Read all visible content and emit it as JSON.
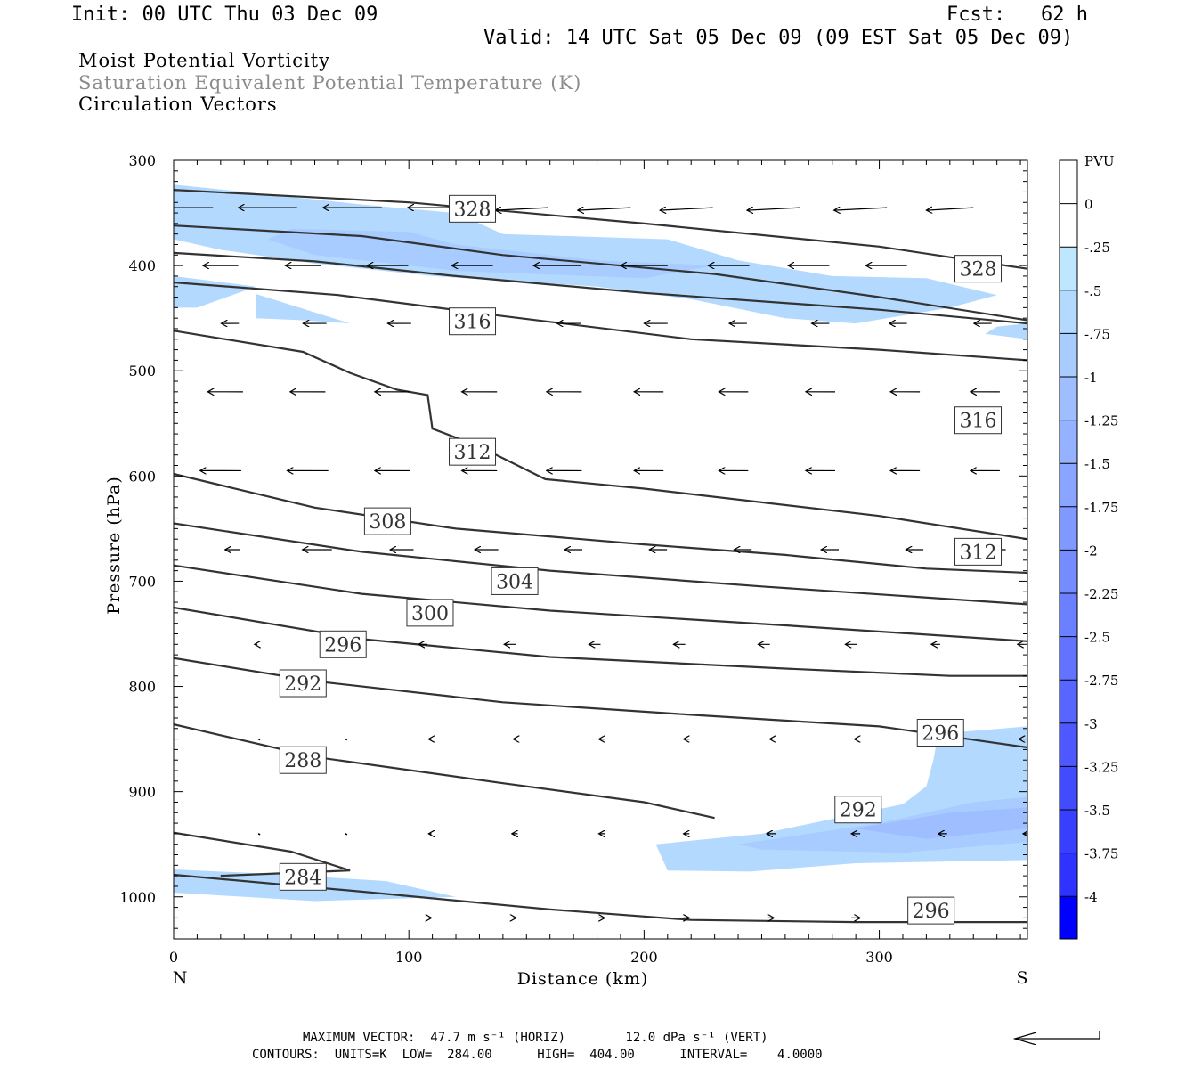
{
  "header": {
    "init": "Init: 00 UTC Thu 03 Dec 09",
    "fcst": "Fcst:   62 h",
    "valid": "Valid: 14 UTC Sat 05 Dec 09 (09 EST Sat 05 Dec 09)"
  },
  "fields": [
    {
      "label": "Moist Potential Vorticity",
      "color": "#000000"
    },
    {
      "label": "Saturation Equivalent Potential Temperature (K)",
      "color": "#8c8c8c"
    },
    {
      "label": "Circulation Vectors",
      "color": "#000000"
    }
  ],
  "chart_data": {
    "type": "contour",
    "xlabel": "Distance (km)",
    "ylabel": "Pressure (hPa)",
    "xlim": [
      0,
      363
    ],
    "ylim": [
      1040,
      300
    ],
    "x_ticks": [
      0,
      100,
      200,
      300
    ],
    "y_ticks": [
      300,
      400,
      500,
      600,
      700,
      800,
      900,
      1000
    ],
    "x_end_labels": {
      "left": "N",
      "right": "S"
    },
    "colorbar": {
      "title": "PVU",
      "levels": [
        "0",
        "-.25",
        "-.5",
        "-.75",
        "-1",
        "-1.25",
        "-1.5",
        "-1.75",
        "-2",
        "-2.25",
        "-2.5",
        "-2.75",
        "-3",
        "-3.25",
        "-3.5",
        "-3.75",
        "-4"
      ],
      "colors": [
        "#ffffff",
        "#ffffff",
        "#bfe6ff",
        "#b3d9ff",
        "#a8ccff",
        "#9ebeff",
        "#94b2ff",
        "#8aa5ff",
        "#8099ff",
        "#758cff",
        "#6b80ff",
        "#6173ff",
        "#5766ff",
        "#4d59ff",
        "#424cff",
        "#3840ff",
        "#2e33ff",
        "#0000ff"
      ]
    },
    "theta_labels": [
      {
        "text": "328",
        "x": 127,
        "p": 346
      },
      {
        "text": "328",
        "x": 342,
        "p": 403
      },
      {
        "text": "316",
        "x": 127,
        "p": 453
      },
      {
        "text": "316",
        "x": 342,
        "p": 547
      },
      {
        "text": "312",
        "x": 127,
        "p": 577
      },
      {
        "text": "312",
        "x": 342,
        "p": 672
      },
      {
        "text": "308",
        "x": 91,
        "p": 643
      },
      {
        "text": "304",
        "x": 145,
        "p": 700
      },
      {
        "text": "300",
        "x": 109,
        "p": 730
      },
      {
        "text": "296",
        "x": 72,
        "p": 760
      },
      {
        "text": "296",
        "x": 326,
        "p": 844
      },
      {
        "text": "296",
        "x": 322,
        "p": 1013
      },
      {
        "text": "292",
        "x": 55,
        "p": 797
      },
      {
        "text": "292",
        "x": 291,
        "p": 917
      },
      {
        "text": "288",
        "x": 55,
        "p": 870
      },
      {
        "text": "284",
        "x": 55,
        "p": 981
      }
    ],
    "contours": [
      [
        [
          0,
          328
        ],
        [
          100,
          340
        ],
        [
          200,
          360
        ],
        [
          300,
          382
        ],
        [
          363,
          403
        ]
      ],
      [
        [
          0,
          362
        ],
        [
          80,
          372
        ],
        [
          140,
          390
        ],
        [
          230,
          408
        ],
        [
          300,
          430
        ],
        [
          363,
          452
        ]
      ],
      [
        [
          0,
          388
        ],
        [
          60,
          396
        ],
        [
          120,
          410
        ],
        [
          200,
          426
        ],
        [
          300,
          442
        ],
        [
          363,
          455
        ]
      ],
      [
        [
          0,
          416
        ],
        [
          70,
          428
        ],
        [
          140,
          448
        ],
        [
          220,
          470
        ],
        [
          300,
          480
        ],
        [
          363,
          490
        ]
      ],
      [
        [
          0,
          462
        ],
        [
          55,
          482
        ],
        [
          75,
          502
        ],
        [
          95,
          518
        ],
        [
          108,
          523
        ],
        [
          110,
          555
        ],
        [
          130,
          572
        ],
        [
          158,
          603
        ],
        [
          200,
          612
        ],
        [
          300,
          638
        ],
        [
          363,
          660
        ]
      ],
      [
        [
          0,
          598
        ],
        [
          60,
          630
        ],
        [
          120,
          650
        ],
        [
          200,
          665
        ],
        [
          260,
          675
        ],
        [
          320,
          688
        ],
        [
          363,
          692
        ]
      ],
      [
        [
          0,
          645
        ],
        [
          80,
          672
        ],
        [
          160,
          690
        ],
        [
          250,
          705
        ],
        [
          363,
          722
        ]
      ],
      [
        [
          0,
          685
        ],
        [
          80,
          712
        ],
        [
          160,
          728
        ],
        [
          260,
          742
        ],
        [
          363,
          757
        ]
      ],
      [
        [
          0,
          725
        ],
        [
          80,
          755
        ],
        [
          160,
          772
        ],
        [
          260,
          783
        ],
        [
          330,
          790
        ],
        [
          363,
          790
        ]
      ],
      [
        [
          0,
          773
        ],
        [
          60,
          795
        ],
        [
          140,
          815
        ],
        [
          220,
          827
        ],
        [
          300,
          838
        ],
        [
          363,
          858
        ]
      ],
      [
        [
          0,
          836
        ],
        [
          60,
          867
        ],
        [
          140,
          892
        ],
        [
          200,
          910
        ],
        [
          230,
          925
        ]
      ],
      [
        [
          0,
          939
        ],
        [
          50,
          957
        ],
        [
          75,
          975
        ],
        [
          20,
          980
        ]
      ],
      [
        [
          0,
          979
        ],
        [
          80,
          995
        ],
        [
          160,
          1012
        ],
        [
          220,
          1022
        ],
        [
          290,
          1024
        ],
        [
          363,
          1024
        ]
      ]
    ],
    "pv_regions": [
      {
        "level": "-.5",
        "points": [
          [
            0,
            323
          ],
          [
            30,
            330
          ],
          [
            80,
            342
          ],
          [
            120,
            350
          ],
          [
            140,
            370
          ],
          [
            210,
            375
          ],
          [
            240,
            395
          ],
          [
            280,
            410
          ],
          [
            320,
            412
          ],
          [
            350,
            428
          ],
          [
            330,
            440
          ],
          [
            290,
            455
          ],
          [
            260,
            450
          ],
          [
            220,
            432
          ],
          [
            180,
            420
          ],
          [
            110,
            410
          ],
          [
            60,
            398
          ],
          [
            20,
            385
          ],
          [
            0,
            375
          ]
        ]
      },
      {
        "level": "-.5",
        "points": [
          [
            0,
            410
          ],
          [
            35,
            420
          ],
          [
            10,
            440
          ],
          [
            0,
            440
          ]
        ]
      },
      {
        "level": "-.5",
        "points": [
          [
            35,
            427
          ],
          [
            75,
            455
          ],
          [
            55,
            452
          ],
          [
            35,
            450
          ]
        ]
      },
      {
        "level": "-.5",
        "points": [
          [
            205,
            950
          ],
          [
            250,
            940
          ],
          [
            310,
            912
          ],
          [
            320,
            895
          ],
          [
            323,
            870
          ],
          [
            325,
            845
          ],
          [
            363,
            838
          ],
          [
            363,
            965
          ],
          [
            290,
            968
          ],
          [
            245,
            976
          ],
          [
            210,
            975
          ]
        ]
      },
      {
        "level": "-.5",
        "points": [
          [
            0,
            974
          ],
          [
            40,
            978
          ],
          [
            90,
            985
          ],
          [
            120,
            1000
          ],
          [
            60,
            1004
          ],
          [
            0,
            996
          ]
        ]
      },
      {
        "level": "-.5",
        "points": [
          [
            350,
            458
          ],
          [
            363,
            455
          ],
          [
            363,
            470
          ],
          [
            345,
            465
          ]
        ]
      },
      {
        "level": "-.75",
        "points": [
          [
            50,
            365
          ],
          [
            100,
            368
          ],
          [
            120,
            380
          ],
          [
            180,
            395
          ],
          [
            230,
            400
          ],
          [
            200,
            412
          ],
          [
            120,
            405
          ],
          [
            60,
            390
          ],
          [
            40,
            375
          ]
        ]
      },
      {
        "level": "-.75",
        "points": [
          [
            240,
            950
          ],
          [
            300,
            930
          ],
          [
            340,
            910
          ],
          [
            363,
            905
          ],
          [
            363,
            948
          ],
          [
            310,
            958
          ],
          [
            250,
            955
          ]
        ]
      },
      {
        "level": "-1",
        "points": [
          [
            290,
            935
          ],
          [
            330,
            920
          ],
          [
            363,
            915
          ],
          [
            363,
            935
          ],
          [
            320,
            945
          ]
        ]
      }
    ],
    "vectors": [
      {
        "p": 345,
        "x": [
          3,
          40,
          76,
          112,
          148,
          183,
          218,
          255,
          292,
          330
        ],
        "dx": [
          -22,
          -20,
          -20,
          -20,
          -18,
          -18,
          -18,
          -18,
          -18,
          -16
        ],
        "dp": [
          0,
          0,
          0,
          0,
          1,
          1,
          1,
          1,
          1,
          1
        ]
      },
      {
        "p": 400,
        "x": [
          20,
          55,
          91,
          127,
          163,
          200,
          236,
          270,
          303,
          340
        ],
        "dx": [
          -12,
          -12,
          -14,
          -14,
          -16,
          -16,
          -14,
          -14,
          -14,
          -12
        ],
        "dp": [
          0,
          0,
          0,
          0,
          0,
          0,
          0,
          0,
          0,
          0
        ]
      },
      {
        "p": 455,
        "x": [
          24,
          60,
          96,
          132,
          168,
          205,
          240,
          275,
          308,
          344
        ],
        "dx": [
          -6,
          -8,
          -8,
          -8,
          -8,
          -8,
          -6,
          -6,
          -6,
          -6
        ],
        "dp": [
          0,
          0,
          0,
          0,
          0,
          0,
          0,
          0,
          0,
          0
        ]
      },
      {
        "p": 520,
        "x": [
          22,
          57,
          93,
          130,
          166,
          202,
          238,
          275,
          311,
          345
        ],
        "dx": [
          -12,
          -12,
          -12,
          -12,
          -12,
          -10,
          -10,
          -10,
          -10,
          -10
        ],
        "dp": [
          0,
          0,
          0,
          0,
          0,
          0,
          0,
          0,
          0,
          0
        ]
      },
      {
        "p": 595,
        "x": [
          20,
          57,
          93,
          130,
          166,
          202,
          238,
          275,
          311,
          345
        ],
        "dx": [
          -14,
          -14,
          -12,
          -12,
          -12,
          -10,
          -10,
          -10,
          -10,
          -10
        ],
        "dp": [
          0,
          0,
          0,
          0,
          0,
          0,
          0,
          0,
          0,
          0
        ]
      },
      {
        "p": 670,
        "x": [
          25,
          61,
          97,
          133,
          170,
          206,
          242,
          279,
          315,
          350
        ],
        "dx": [
          -5,
          -10,
          -8,
          -8,
          -6,
          -6,
          -6,
          -6,
          -6,
          -6
        ],
        "dp": [
          0,
          0,
          0,
          0,
          0,
          0,
          0,
          0,
          0,
          0
        ]
      },
      {
        "p": 760,
        "x": [
          35,
          72,
          106,
          143,
          179,
          215,
          251,
          288,
          324,
          360
        ],
        "dx": [
          -1,
          -2,
          -3,
          -4,
          -4,
          -4,
          -4,
          -4,
          -3,
          -2
        ],
        "dp": [
          0,
          0,
          0,
          0,
          0,
          0,
          0,
          0,
          0,
          0
        ]
      },
      {
        "p": 850,
        "x": [
          36,
          73,
          109,
          145,
          182,
          218,
          254,
          290,
          327,
          360
        ],
        "dx": [
          0,
          0,
          -1,
          -1,
          -2,
          -2,
          -1,
          -1,
          -1,
          -1
        ],
        "dp": [
          0,
          0,
          0,
          0,
          0,
          0,
          0,
          0,
          0,
          0
        ]
      },
      {
        "p": 940,
        "x": [
          36,
          73,
          109,
          145,
          182,
          218,
          254,
          290,
          327,
          363
        ],
        "dx": [
          0,
          0,
          -1,
          -2,
          -2,
          -2,
          -3,
          -3,
          -3,
          -3
        ],
        "dp": [
          0,
          0,
          0,
          0,
          0,
          0,
          0,
          0,
          0,
          0
        ]
      },
      {
        "p": 1020,
        "x": [
          109,
          145,
          182,
          218,
          254,
          290,
          327
        ],
        "dx": [
          1,
          1,
          2,
          2,
          2,
          3,
          3
        ],
        "dp": [
          0,
          0,
          0,
          0,
          0,
          0,
          0
        ]
      }
    ]
  },
  "footer": {
    "max_vector": "MAXIMUM VECTOR:  47.7 m s⁻¹ (HORIZ)        12.0 dPa s⁻¹ (VERT)",
    "contours": "CONTOURS:  UNITS=K  LOW=  284.00      HIGH=  404.00      INTERVAL=    4.0000"
  }
}
